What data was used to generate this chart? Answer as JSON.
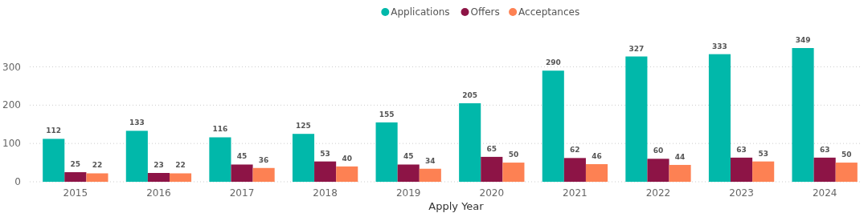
{
  "chart_data": {
    "type": "bar",
    "xlabel": "Apply Year",
    "categories": [
      "2015",
      "2016",
      "2017",
      "2018",
      "2019",
      "2020",
      "2021",
      "2022",
      "2023",
      "2024"
    ],
    "series": [
      {
        "name": "Applications",
        "color": "#01b8aa",
        "values": [
          112,
          133,
          116,
          125,
          155,
          205,
          290,
          327,
          333,
          349
        ]
      },
      {
        "name": "Offers",
        "color": "#8d1446",
        "values": [
          25,
          23,
          45,
          53,
          45,
          65,
          62,
          60,
          63,
          63
        ]
      },
      {
        "name": "Acceptances",
        "color": "#fd8153",
        "values": [
          22,
          22,
          36,
          40,
          34,
          50,
          46,
          44,
          53,
          50
        ]
      }
    ],
    "ylim": [
      0,
      349
    ],
    "yticks": [
      0,
      100,
      200,
      300
    ],
    "grid": "y",
    "legend": "top",
    "data_labels": true
  }
}
